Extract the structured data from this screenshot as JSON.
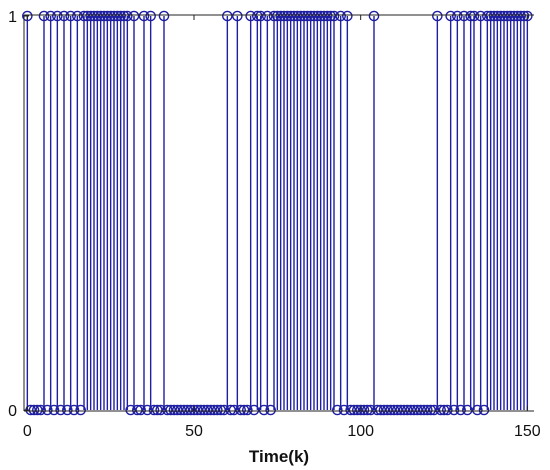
{
  "chart_data": {
    "type": "stem",
    "title": "",
    "xlabel": "Time(k)",
    "ylabel": "",
    "xlim": [
      -1,
      152
    ],
    "ylim": [
      0,
      1
    ],
    "xticks": [
      0,
      50,
      100,
      150
    ],
    "yticks": [
      0,
      1
    ],
    "grid": false,
    "marker": "circle-open",
    "colors": {
      "stem": "#1f1fa3",
      "axis": "#222222",
      "background": "#ffffff"
    },
    "series": [
      {
        "x": [
          0,
          1,
          2,
          3,
          4,
          5,
          6,
          7,
          8,
          9,
          10,
          11,
          12,
          13,
          14,
          15,
          16,
          17,
          18,
          19,
          20,
          21,
          22,
          23,
          24,
          25,
          26,
          27,
          28,
          29,
          30,
          31,
          32,
          33,
          34,
          35,
          36,
          37,
          38,
          39,
          40,
          41,
          42,
          43,
          44,
          45,
          46,
          47,
          48,
          49,
          50,
          51,
          52,
          53,
          54,
          55,
          56,
          57,
          58,
          59,
          60,
          61,
          62,
          63,
          64,
          65,
          66,
          67,
          68,
          69,
          70,
          71,
          72,
          73,
          74,
          75,
          76,
          77,
          78,
          79,
          80,
          81,
          82,
          83,
          84,
          85,
          86,
          87,
          88,
          89,
          90,
          91,
          92,
          93,
          94,
          95,
          96,
          97,
          98,
          99,
          100,
          101,
          102,
          103,
          104,
          105,
          106,
          107,
          108,
          109,
          110,
          111,
          112,
          113,
          114,
          115,
          116,
          117,
          118,
          119,
          120,
          121,
          122,
          123,
          124,
          125,
          126,
          127,
          128,
          129,
          130,
          131,
          132,
          133,
          134,
          135,
          136,
          137,
          138,
          139,
          140,
          141,
          142,
          143,
          144,
          145,
          146,
          147,
          148,
          149,
          150
        ],
        "y": [
          1,
          0,
          0,
          0,
          0,
          1,
          0,
          1,
          0,
          1,
          0,
          1,
          0,
          1,
          0,
          1,
          0,
          1,
          1,
          1,
          1,
          1,
          1,
          1,
          1,
          1,
          1,
          1,
          1,
          1,
          1,
          0,
          1,
          0,
          0,
          1,
          0,
          1,
          0,
          0,
          0,
          1,
          0,
          0,
          0,
          0,
          0,
          0,
          0,
          0,
          0,
          0,
          0,
          0,
          0,
          0,
          0,
          0,
          0,
          0,
          1,
          0,
          0,
          1,
          0,
          0,
          0,
          1,
          0,
          1,
          1,
          0,
          1,
          0,
          1,
          1,
          1,
          1,
          1,
          1,
          1,
          1,
          1,
          1,
          1,
          1,
          1,
          1,
          1,
          1,
          1,
          1,
          1,
          0,
          1,
          0,
          1,
          0,
          0,
          0,
          0,
          0,
          0,
          0,
          1,
          0,
          0,
          0,
          0,
          0,
          0,
          0,
          0,
          0,
          0,
          0,
          0,
          0,
          0,
          0,
          0,
          0,
          0,
          1,
          0,
          0,
          0,
          1,
          0,
          1,
          0,
          1,
          0,
          1,
          1,
          0,
          1,
          0,
          1,
          1,
          1,
          1,
          1,
          1,
          1,
          1,
          1,
          1,
          1,
          1,
          1
        ]
      }
    ]
  }
}
